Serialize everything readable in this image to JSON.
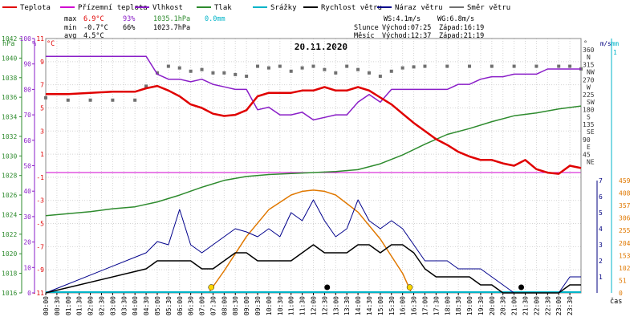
{
  "legend": [
    {
      "label": "Teplota",
      "color": "#e00000"
    },
    {
      "label": "Přízemní teplota",
      "color": "#d000d0"
    },
    {
      "label": "Vlhkost",
      "color": "#8a1ec8"
    },
    {
      "label": "Tlak",
      "color": "#2e8b2e"
    },
    {
      "label": "Srážky",
      "color": "#00b4c8"
    },
    {
      "label": "Rychlost větru",
      "color": "#000000"
    },
    {
      "label": "Náraz větru",
      "color": "#00008b"
    },
    {
      "label": "Směr větru",
      "color": "#707070"
    }
  ],
  "stats": {
    "max_label": "max",
    "min_label": "min",
    "avg_label": "avg",
    "max_temp": "6.9°C",
    "max_hum": "93%",
    "max_press": "1035.1hPa",
    "max_rain": "0.0mm",
    "min_temp": "-0.7°C",
    "min_hum": "66%",
    "min_press": "1023.7hPa",
    "avg_temp": "4.5°C"
  },
  "wind": {
    "ws": "WS:4.1m/s",
    "wg": "WG:6.8m/s"
  },
  "sun": {
    "label": "Slunce",
    "rise": "Východ:07:25",
    "set": "Západ:16:19"
  },
  "moon": {
    "label": "Měsíc",
    "rise": "Východ:12:37",
    "set": "Západ:21:19"
  },
  "date": "20.11.2020",
  "axis_titles": {
    "hpa": "hPa",
    "pct": "%",
    "degc": "°C",
    "deg": "°",
    "ms": "m/s",
    "mm": "mm",
    "cas": "čas"
  },
  "chart_data": {
    "type": "line",
    "title": "20.11.2020",
    "x_ticks": [
      "00:00",
      "00:30",
      "01:00",
      "01:30",
      "02:00",
      "02:30",
      "03:00",
      "03:30",
      "04:00",
      "04:30",
      "05:00",
      "05:30",
      "06:00",
      "06:30",
      "07:00",
      "07:30",
      "08:00",
      "08:30",
      "09:00",
      "09:30",
      "10:00",
      "10:30",
      "11:00",
      "11:30",
      "12:00",
      "12:30",
      "13:00",
      "13:30",
      "14:00",
      "14:30",
      "15:00",
      "15:30",
      "16:00",
      "16:30",
      "17:00",
      "17:30",
      "18:00",
      "18:30",
      "19:00",
      "19:30",
      "20:00",
      "20:30",
      "21:00",
      "21:30",
      "22:00",
      "22:30",
      "23:00",
      "23:30"
    ],
    "y_axes": {
      "pressure_hpa": {
        "ticks": [
          "1016",
          "1018",
          "1020",
          "1022",
          "1024",
          "1026",
          "1028",
          "1030",
          "1032",
          "1034",
          "1036",
          "1038",
          "1040",
          "1042"
        ],
        "range": [
          1016,
          1042
        ]
      },
      "humidity_pct": {
        "ticks": [
          "0",
          "10",
          "20",
          "30",
          "40",
          "50",
          "60",
          "70",
          "80",
          "90",
          "100"
        ],
        "range": [
          0,
          100
        ]
      },
      "temperature_c": {
        "ticks": [
          "-11",
          "-9",
          "-7",
          "-5",
          "-3",
          "-1",
          "1",
          "3",
          "5",
          "7",
          "9",
          "11"
        ],
        "range": [
          -11,
          11
        ]
      },
      "wind_dir_deg": {
        "ticks": [
          "0",
          "45",
          "90",
          "135",
          "180",
          "225",
          "270",
          "315",
          "360"
        ],
        "dirs": [
          "N",
          "NE",
          "E",
          "SE",
          "S",
          "SW",
          "W",
          "NW",
          "N"
        ],
        "range": [
          0,
          360
        ]
      },
      "wind_ms": {
        "ticks": [
          "0",
          "1",
          "2",
          "3",
          "4",
          "5",
          "6",
          "7"
        ],
        "range": [
          0,
          7
        ]
      },
      "rain_mm": {
        "ticks": [
          "0",
          "1"
        ],
        "range": [
          0,
          1
        ]
      },
      "solar": {
        "ticks": [
          "0",
          "51",
          "102",
          "153",
          "204",
          "255",
          "306",
          "357",
          "408",
          "459"
        ],
        "range": [
          0,
          459
        ]
      }
    },
    "series": [
      {
        "name": "Teplota",
        "unit": "°C",
        "x": [
          0,
          1,
          2,
          3,
          4,
          4.5,
          5,
          5.5,
          6,
          6.5,
          7,
          7.5,
          8,
          8.5,
          9,
          9.5,
          10,
          10.5,
          11,
          11.5,
          12,
          12.5,
          13,
          13.5,
          14,
          14.5,
          15,
          15.5,
          16,
          16.5,
          17,
          17.5,
          18,
          18.5,
          19,
          19.5,
          20,
          20.5,
          21,
          21.5,
          22,
          22.5,
          23,
          23.5,
          24
        ],
        "y": [
          6.2,
          6.2,
          6.3,
          6.4,
          6.4,
          6.7,
          6.9,
          6.5,
          6.0,
          5.3,
          5.0,
          4.5,
          4.3,
          4.4,
          4.8,
          6.0,
          6.3,
          6.3,
          6.3,
          6.5,
          6.5,
          6.8,
          6.5,
          6.5,
          6.8,
          6.5,
          5.9,
          5.3,
          4.5,
          3.7,
          3.0,
          2.3,
          1.8,
          1.2,
          0.8,
          0.5,
          0.5,
          0.2,
          0.0,
          0.5,
          -0.3,
          -0.6,
          -0.7,
          0.0,
          -0.2
        ]
      },
      {
        "name": "Vlhkost",
        "unit": "%",
        "x": [
          0,
          1,
          2,
          3,
          4,
          4.5,
          5,
          5.5,
          6,
          6.5,
          7,
          7.5,
          8,
          8.5,
          9,
          9.5,
          10,
          10.5,
          11,
          11.5,
          12,
          12.5,
          13,
          13.5,
          14,
          14.5,
          15,
          15.5,
          16,
          16.5,
          17,
          17.5,
          18,
          18.5,
          19,
          19.5,
          20,
          20.5,
          21,
          21.5,
          22,
          22.5,
          23,
          23.5,
          24
        ],
        "y": [
          93,
          93,
          93,
          93,
          93,
          93,
          86,
          84,
          84,
          83,
          84,
          82,
          81,
          80,
          80,
          72,
          73,
          70,
          70,
          71,
          68,
          69,
          70,
          70,
          75,
          78,
          75,
          80,
          80,
          80,
          80,
          80,
          80,
          82,
          82,
          84,
          85,
          85,
          86,
          86,
          86,
          88,
          88,
          88,
          88
        ]
      },
      {
        "name": "Tlak",
        "unit": "hPa",
        "x": [
          0,
          1,
          2,
          3,
          4,
          5,
          6,
          7,
          8,
          9,
          10,
          11,
          12,
          13,
          14,
          15,
          16,
          17,
          18,
          19,
          20,
          21,
          22,
          23,
          24
        ],
        "y": [
          1023.9,
          1024.1,
          1024.3,
          1024.6,
          1024.8,
          1025.3,
          1026.0,
          1026.8,
          1027.5,
          1027.9,
          1028.1,
          1028.2,
          1028.3,
          1028.4,
          1028.6,
          1029.2,
          1030.1,
          1031.2,
          1032.2,
          1032.8,
          1033.5,
          1034.1,
          1034.4,
          1034.8,
          1035.1
        ]
      },
      {
        "name": "Srážky",
        "unit": "mm",
        "x": [
          0,
          24
        ],
        "y": [
          0,
          0
        ]
      },
      {
        "name": "Rychlost větru",
        "unit": "m/s",
        "x": [
          0,
          4.5,
          5,
          5.5,
          6,
          6.5,
          7,
          7.5,
          8,
          8.5,
          9,
          9.5,
          10,
          10.5,
          11,
          11.5,
          12,
          12.5,
          13,
          13.5,
          14,
          14.5,
          15,
          15.5,
          16,
          16.5,
          17,
          17.5,
          18,
          18.5,
          19,
          19.5,
          20,
          20.5,
          21,
          22,
          23,
          23.5,
          24
        ],
        "y": [
          0,
          1.5,
          2.0,
          2.0,
          2.0,
          2.0,
          1.5,
          1.5,
          2.0,
          2.5,
          2.5,
          2.0,
          2.0,
          2.0,
          2.0,
          2.5,
          3.0,
          2.5,
          2.5,
          2.5,
          3.0,
          3.0,
          2.5,
          3.0,
          3.0,
          2.5,
          1.5,
          1.0,
          1.0,
          1.0,
          1.0,
          0.5,
          0.5,
          0,
          0,
          0,
          0,
          0.5,
          0.5
        ]
      },
      {
        "name": "Náraz větru",
        "unit": "m/s",
        "x": [
          0,
          4.5,
          5,
          5.5,
          6,
          6.5,
          7,
          7.5,
          8,
          8.5,
          9,
          9.5,
          10,
          10.5,
          11,
          11.5,
          12,
          12.5,
          13,
          13.5,
          14,
          14.5,
          15,
          15.5,
          16,
          16.5,
          17,
          17.5,
          18,
          18.5,
          19,
          19.5,
          20,
          20.5,
          21,
          22,
          23,
          23.5,
          24
        ],
        "y": [
          0,
          2.5,
          3.2,
          3.0,
          5.2,
          3.0,
          2.5,
          3.0,
          3.5,
          4.0,
          3.8,
          3.5,
          4.0,
          3.5,
          5.0,
          4.5,
          5.8,
          4.5,
          3.5,
          4.0,
          5.8,
          4.5,
          4.0,
          4.5,
          4.0,
          3.0,
          2.0,
          2.0,
          2.0,
          1.5,
          1.5,
          1.5,
          1.0,
          0.5,
          0,
          0,
          0,
          1.0,
          1.0
        ]
      },
      {
        "name": "Směr větru",
        "unit": "°",
        "x": [
          0,
          1,
          2,
          3,
          4,
          4.5,
          5,
          5.5,
          6,
          6.5,
          7,
          7.5,
          8,
          8.5,
          9,
          9.5,
          10,
          10.5,
          11,
          11.5,
          12,
          12.5,
          13,
          13.5,
          14,
          14.5,
          15,
          15.5,
          16,
          16.5,
          17,
          18,
          19,
          20,
          21,
          22,
          23,
          23.5,
          24
        ],
        "y": [
          225,
          218,
          218,
          218,
          218,
          260,
          300,
          320,
          315,
          305,
          310,
          300,
          300,
          295,
          290,
          320,
          315,
          320,
          305,
          315,
          320,
          310,
          300,
          320,
          310,
          300,
          290,
          305,
          315,
          318,
          320,
          320,
          320,
          320,
          320,
          320,
          320,
          320,
          312
        ]
      },
      {
        "name": "Sluneční záření",
        "unit": "",
        "x": [
          7.3,
          8,
          9,
          10,
          11,
          11.5,
          12,
          12.5,
          13,
          14,
          15,
          16,
          16.4
        ],
        "y": [
          0,
          90,
          230,
          340,
          400,
          415,
          420,
          415,
          400,
          330,
          220,
          80,
          0
        ]
      }
    ]
  }
}
